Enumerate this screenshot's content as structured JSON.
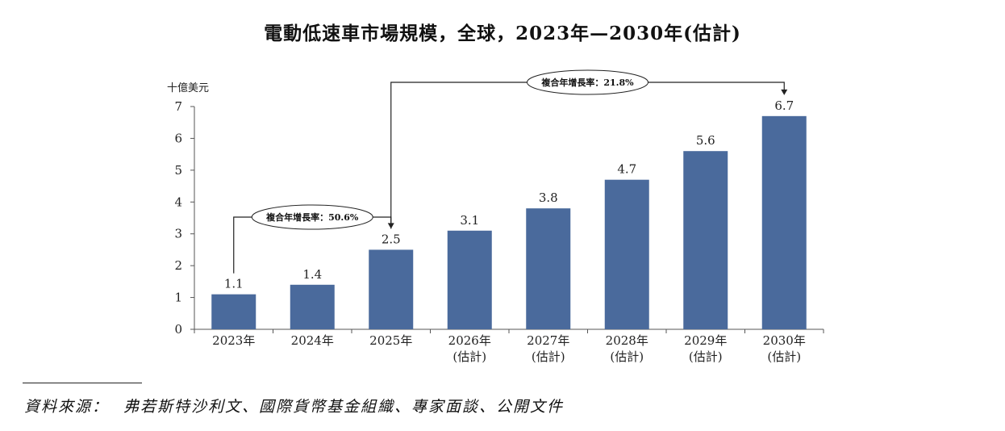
{
  "title": "電動低速車市場規模，全球，2023年—2030年(估計)",
  "chart_data": {
    "type": "bar",
    "unit_label": "十億美元",
    "categories": [
      "2023年",
      "2024年",
      "2025年",
      "2026年",
      "2027年",
      "2028年",
      "2029年",
      "2030年"
    ],
    "category_sublabels": [
      "",
      "",
      "",
      "(估計)",
      "(估計)",
      "(估計)",
      "(估計)",
      "(估計)"
    ],
    "values": [
      1.1,
      1.4,
      2.5,
      3.1,
      3.8,
      4.7,
      5.6,
      6.7
    ],
    "data_labels": [
      "1.1",
      "1.4",
      "2.5",
      "3.1",
      "3.8",
      "4.7",
      "5.6",
      "6.7"
    ],
    "ylim": [
      0,
      7
    ],
    "yticks": [
      "0",
      "1",
      "2",
      "3",
      "4",
      "5",
      "6",
      "7"
    ],
    "bar_color": "#4a6a9c",
    "grid": false,
    "annotations": [
      {
        "text": "複合年增長率：50.6%",
        "from": "2023年",
        "to": "2025年"
      },
      {
        "text": "複合年增長率：21.8%",
        "from": "2025年",
        "to": "2030年"
      }
    ]
  },
  "source": {
    "label": "資料來源：",
    "text": "弗若斯特沙利文、國際貨幣基金組織、專家面談、公開文件"
  }
}
